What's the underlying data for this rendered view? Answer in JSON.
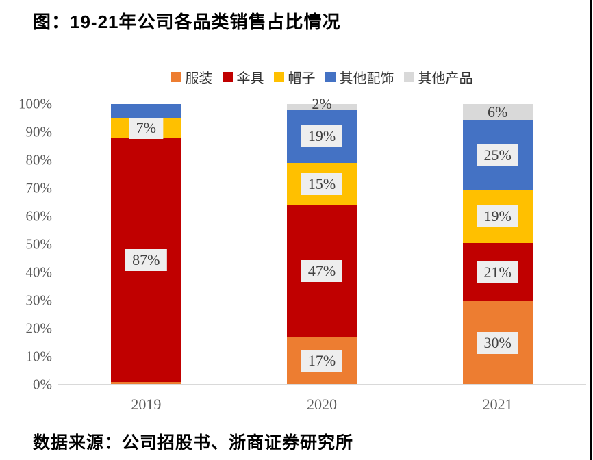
{
  "title": "图：19-21年公司各品类销售占比情况",
  "source": "数据来源：公司招股书、浙商证券研究所",
  "chart_data": {
    "type": "bar",
    "subtype": "stacked-percentage-column",
    "categories": [
      "2019",
      "2020",
      "2021"
    ],
    "series": [
      {
        "name": "服装",
        "color": "#ED7D31",
        "values": [
          1,
          17,
          30
        ],
        "labels": [
          "",
          "17%",
          "30%"
        ]
      },
      {
        "name": "伞具",
        "color": "#C00000",
        "values": [
          87,
          47,
          21
        ],
        "labels": [
          "87%",
          "47%",
          "21%"
        ]
      },
      {
        "name": "帽子",
        "color": "#FFC000",
        "values": [
          7,
          15,
          19
        ],
        "labels": [
          "7%",
          "15%",
          "19%"
        ]
      },
      {
        "name": "其他配饰",
        "color": "#4472C4",
        "values": [
          5,
          19,
          25
        ],
        "labels": [
          "",
          "19%",
          "25%"
        ]
      },
      {
        "name": "其他产品",
        "color": "#D9D9D9",
        "values": [
          0,
          2,
          6
        ],
        "labels": [
          "",
          "2%",
          "6%"
        ]
      }
    ],
    "yticks": [
      "0%",
      "10%",
      "20%",
      "30%",
      "40%",
      "50%",
      "60%",
      "70%",
      "80%",
      "90%",
      "100%"
    ],
    "ylim": [
      0,
      100
    ],
    "grid": "off",
    "legend_position": "top-center",
    "label_box_color": "#EEEEEE",
    "axis_line_color": "#D9D9D9",
    "tick_text_color": "#595959"
  }
}
